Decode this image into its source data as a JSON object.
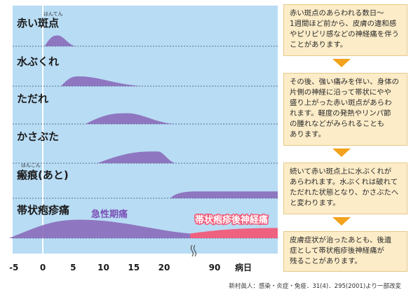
{
  "chart_data": {
    "type": "area",
    "xlabel": "病日",
    "x_ticks": [
      "-5",
      "0",
      "5",
      "10",
      "15",
      "20",
      "90"
    ],
    "rows": [
      {
        "label": "赤い斑点",
        "ruby": "はんてん",
        "start": 0.3,
        "peak": 2.5,
        "end": 5.5,
        "height": 0.55
      },
      {
        "label": "水ぶくれ",
        "ruby": "",
        "start": 3,
        "peak": 6,
        "end": 17,
        "height": 0.5
      },
      {
        "label": "ただれ",
        "ruby": "",
        "start": 7,
        "peak": 14,
        "end": 22,
        "height": 0.55
      },
      {
        "label": "かさぶた",
        "ruby": "",
        "start": 9,
        "peak": 19,
        "end": 22,
        "height": 0.6
      },
      {
        "label": "瘢痕(あと)",
        "ruby": "はんこん",
        "start": 21,
        "peak": 24,
        "end": 28,
        "height": 0.35,
        "continues": true
      },
      {
        "label": "帯状疱疹痛",
        "ruby": "",
        "start": -5,
        "peak": 6,
        "end": 22,
        "height": 0.8
      }
    ],
    "acute_pain_label": "急性期痛",
    "pn_label": "帯状疱疹後神経痛",
    "colors": {
      "bg": "#b8dcf4",
      "series": "#8a6cba",
      "pn": "#f05a78",
      "text": "#1a1a1a"
    }
  },
  "panels": [
    "赤い斑点のあらわれる数日～\n1週間ほど前から、皮膚の違和感\nやピリピリ感などの神経痛を伴う\nことがあります。",
    "その後、強い痛みを伴い、身体の\n片側の神経に沿って帯状にやや\n盛り上がった赤い斑点があらわ\nれます。軽度の発熱やリンパ節\nの腫れなどがみられることも\nあります。",
    "続いて赤い斑点上に水ぶくれが\nあらわれます。水ぶくれは破れて\nただれた状態となり、かさぶたへ\nと変わります。",
    "皮膚症状が治ったあとも、後遺\n症として帯状疱疹後神経痛が\n残ることがあります。"
  ],
  "source": "新村眞人：感染・炎症・免疫．31(4)．295(2001)より一部改変"
}
